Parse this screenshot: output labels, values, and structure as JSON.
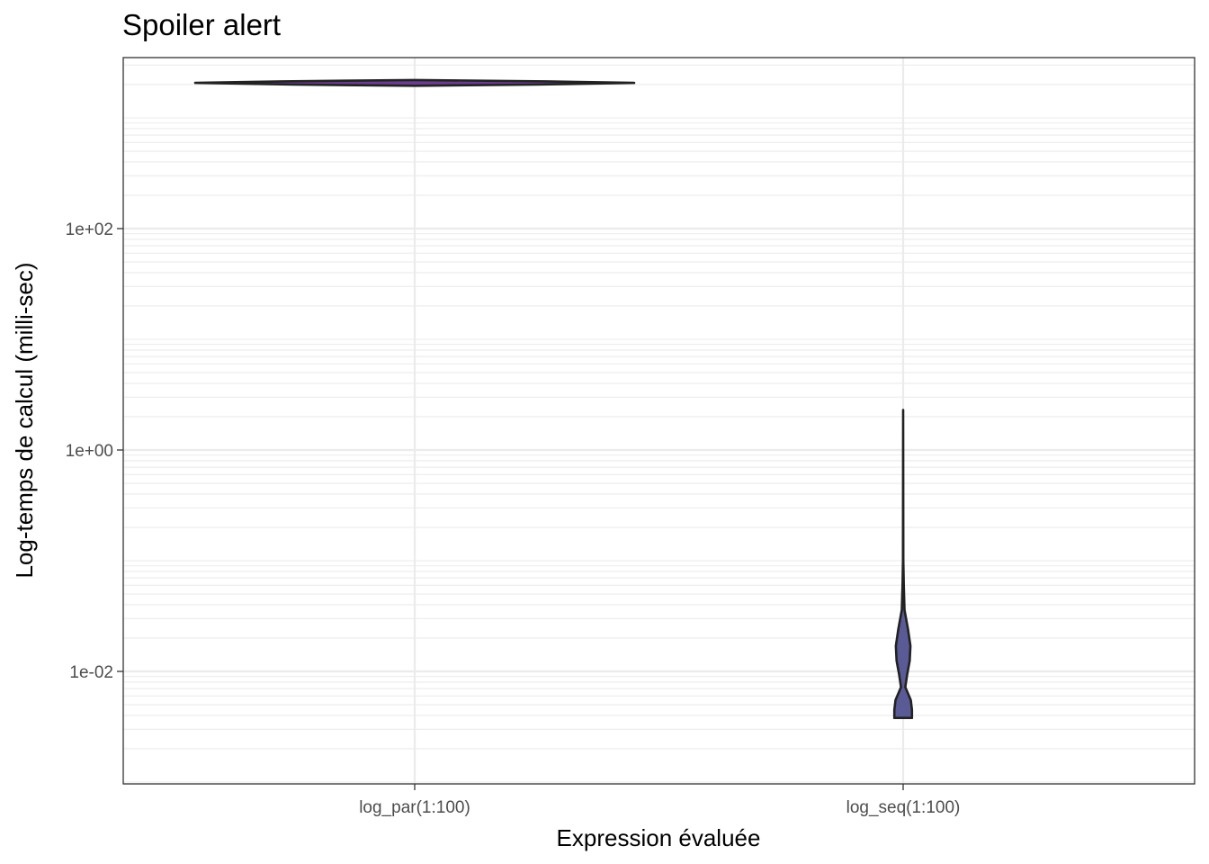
{
  "chart_data": {
    "type": "violin",
    "title": "Spoiler alert",
    "xlabel": "Expression évaluée",
    "ylabel": "Log-temps de calcul (milli-sec)",
    "y_scale": "log10",
    "ylim": [
      0.0019,
      5500
    ],
    "y_ticks": [
      0.01,
      1,
      100
    ],
    "y_tick_labels": [
      "1e-02",
      "1e+00",
      "1e+02"
    ],
    "categories": [
      "log_par(1:100)",
      "log_seq(1:100)"
    ],
    "grid": true,
    "legend": "none",
    "series": [
      {
        "category": "log_par(1:100)",
        "fill": "#6a3d8f",
        "profile": [
          {
            "y": 1950,
            "w": 0.0
          },
          {
            "y": 2000,
            "w": 0.55
          },
          {
            "y": 2070,
            "w": 1.0
          },
          {
            "y": 2140,
            "w": 0.6
          },
          {
            "y": 2200,
            "w": 0.0
          }
        ]
      },
      {
        "category": "log_seq(1:100)",
        "fill": "#5a5a96",
        "profile": [
          {
            "y": 0.0038,
            "w": 0.04
          },
          {
            "y": 0.0045,
            "w": 0.04
          },
          {
            "y": 0.0055,
            "w": 0.035
          },
          {
            "y": 0.0072,
            "w": 0.01
          },
          {
            "y": 0.0093,
            "w": 0.018
          },
          {
            "y": 0.0125,
            "w": 0.03
          },
          {
            "y": 0.017,
            "w": 0.033
          },
          {
            "y": 0.024,
            "w": 0.022
          },
          {
            "y": 0.036,
            "w": 0.006
          },
          {
            "y": 0.06,
            "w": 0.003
          },
          {
            "y": 0.1,
            "w": 0.001
          },
          {
            "y": 2.3,
            "w": 0.0
          }
        ]
      }
    ]
  }
}
